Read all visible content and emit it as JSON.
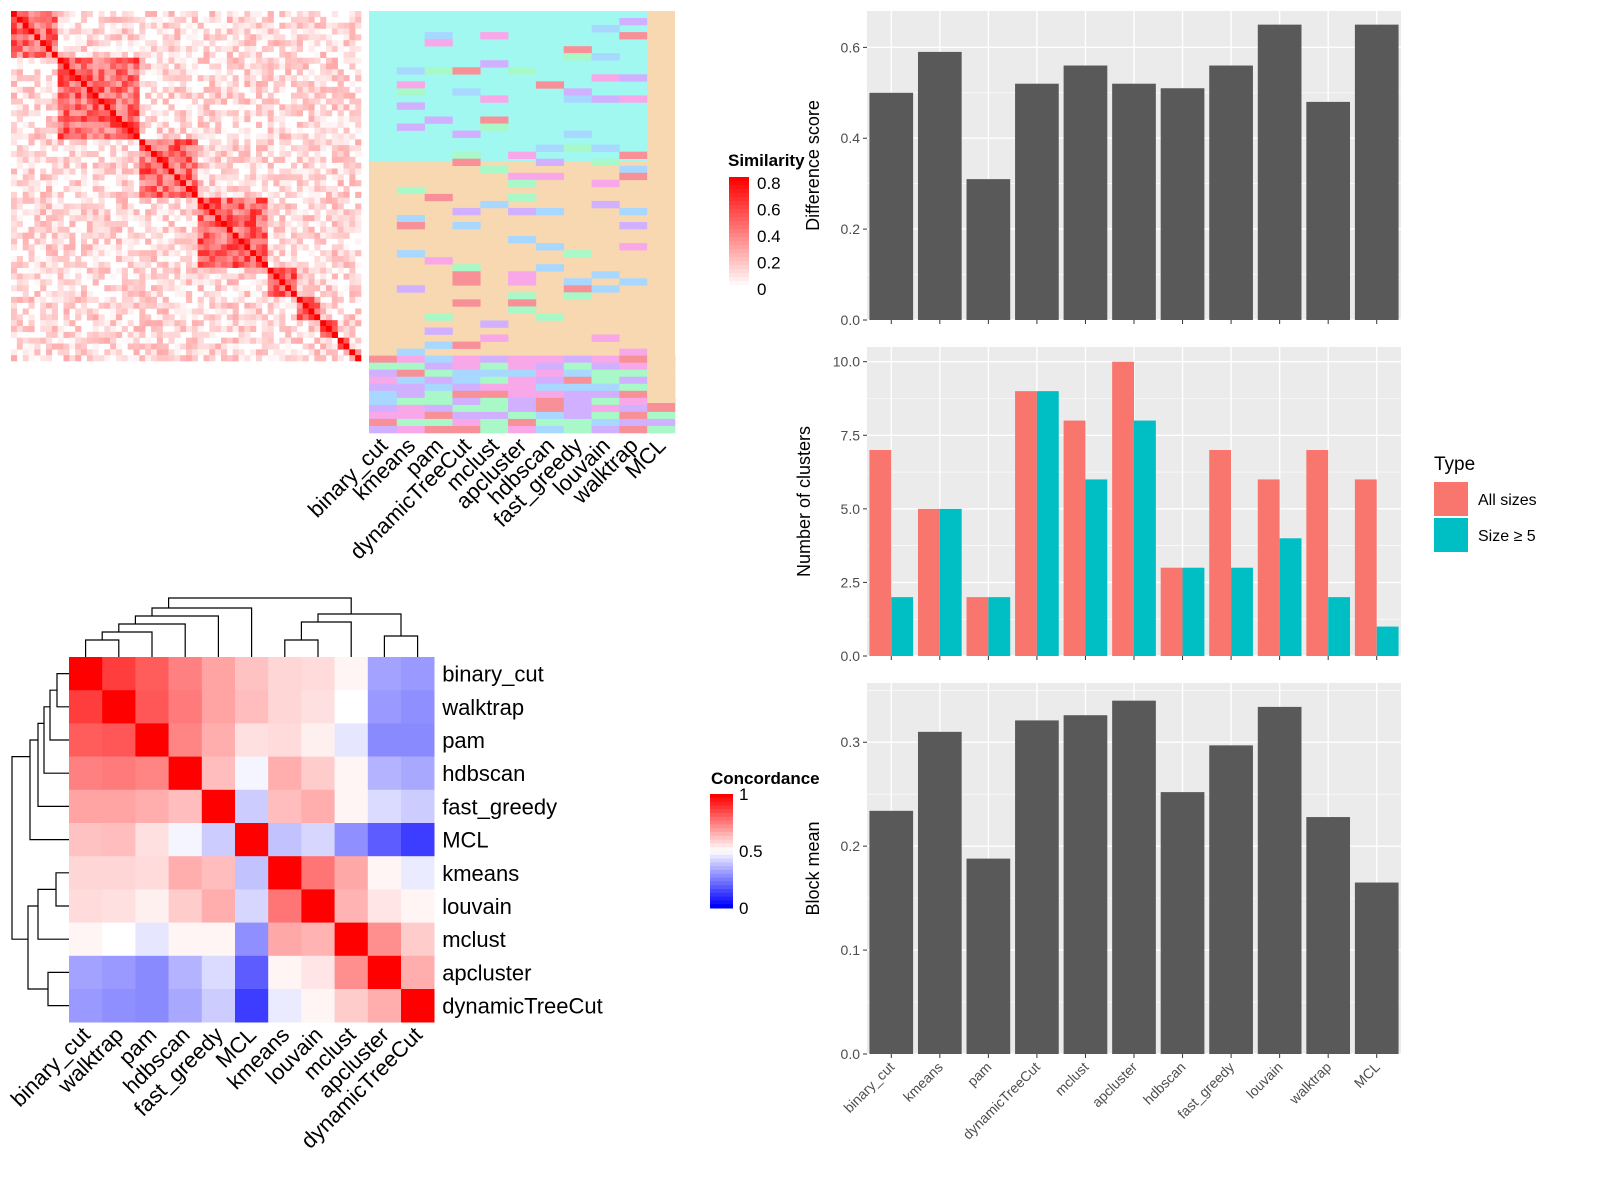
{
  "methods": [
    "binary_cut",
    "kmeans",
    "pam",
    "dynamicTreeCut",
    "mclust",
    "apcluster",
    "hdbscan",
    "fast_greedy",
    "louvain",
    "walktrap",
    "MCL"
  ],
  "chart_data": [
    {
      "id": "similarity_heatmap",
      "type": "heatmap",
      "legend_title": "Similarity",
      "legend_ticks": [
        "0",
        "0.2",
        "0.4",
        "0.6",
        "0.8"
      ],
      "legend_range": [
        0,
        0.8
      ],
      "color_low": "#ffffff",
      "color_high": "#ff0000",
      "matrix_size": 60,
      "block_sizes": [
        8,
        14,
        10,
        12,
        5,
        4,
        3,
        2,
        2
      ],
      "column_labels": [
        "binary_cut",
        "kmeans",
        "pam",
        "dynamicTreeCut",
        "mclust",
        "apcluster",
        "hdbscan",
        "fast_greedy",
        "louvain",
        "walktrap",
        "MCL"
      ],
      "cluster_palette": [
        "#a0f8f0",
        "#f8d8b0",
        "#a8d8ff",
        "#f89098",
        "#d0b0ff",
        "#a8f8c8",
        "#f8a8e8"
      ]
    },
    {
      "id": "concordance_heatmap",
      "type": "heatmap",
      "legend_title": "Concordance",
      "legend_ticks": [
        "1",
        "0.5",
        "0"
      ],
      "legend_range": [
        0,
        1
      ],
      "color_low": "#0000ff",
      "color_mid": "#ffffff",
      "color_high": "#ff0000",
      "labels": [
        "binary_cut",
        "walktrap",
        "pam",
        "hdbscan",
        "fast_greedy",
        "MCL",
        "kmeans",
        "louvain",
        "mclust",
        "apcluster",
        "dynamicTreeCut"
      ],
      "matrix": [
        [
          1.0,
          0.88,
          0.82,
          0.75,
          0.68,
          0.62,
          0.58,
          0.57,
          0.52,
          0.32,
          0.3
        ],
        [
          0.88,
          1.0,
          0.83,
          0.76,
          0.68,
          0.63,
          0.58,
          0.56,
          0.5,
          0.3,
          0.28
        ],
        [
          0.82,
          0.83,
          1.0,
          0.74,
          0.66,
          0.56,
          0.57,
          0.53,
          0.45,
          0.27,
          0.27
        ],
        [
          0.75,
          0.76,
          0.74,
          1.0,
          0.63,
          0.48,
          0.66,
          0.6,
          0.52,
          0.35,
          0.33
        ],
        [
          0.68,
          0.68,
          0.66,
          0.63,
          1.0,
          0.4,
          0.63,
          0.66,
          0.52,
          0.43,
          0.4
        ],
        [
          0.62,
          0.63,
          0.56,
          0.48,
          0.4,
          1.0,
          0.38,
          0.42,
          0.28,
          0.18,
          0.12
        ],
        [
          0.58,
          0.58,
          0.57,
          0.66,
          0.63,
          0.38,
          1.0,
          0.77,
          0.67,
          0.52,
          0.46
        ],
        [
          0.57,
          0.56,
          0.53,
          0.6,
          0.66,
          0.42,
          0.77,
          1.0,
          0.65,
          0.55,
          0.52
        ],
        [
          0.52,
          0.5,
          0.45,
          0.52,
          0.52,
          0.28,
          0.67,
          0.65,
          1.0,
          0.72,
          0.6
        ],
        [
          0.32,
          0.3,
          0.27,
          0.35,
          0.43,
          0.18,
          0.52,
          0.55,
          0.72,
          1.0,
          0.66
        ],
        [
          0.3,
          0.28,
          0.27,
          0.33,
          0.4,
          0.12,
          0.46,
          0.52,
          0.6,
          0.66,
          1.0
        ]
      ]
    },
    {
      "id": "difference_score",
      "type": "bar",
      "categories": [
        "binary_cut",
        "kmeans",
        "pam",
        "dynamicTreeCut",
        "mclust",
        "apcluster",
        "hdbscan",
        "fast_greedy",
        "louvain",
        "walktrap",
        "MCL"
      ],
      "values": [
        0.5,
        0.59,
        0.31,
        0.52,
        0.56,
        0.52,
        0.51,
        0.56,
        0.65,
        0.48,
        0.65
      ],
      "ylabel": "Difference score",
      "ylim": [
        0,
        0.68
      ],
      "yticks": [
        "0.0",
        "0.2",
        "0.4",
        "0.6"
      ],
      "ytick_values": [
        0,
        0.2,
        0.4,
        0.6
      ],
      "bar_color": "#595959",
      "panel_bg": "#ebebeb",
      "grid": true
    },
    {
      "id": "number_of_clusters",
      "type": "bar",
      "categories": [
        "binary_cut",
        "kmeans",
        "pam",
        "dynamicTreeCut",
        "mclust",
        "apcluster",
        "hdbscan",
        "fast_greedy",
        "louvain",
        "walktrap",
        "MCL"
      ],
      "series": [
        {
          "name": "All sizes",
          "color": "#f8766d",
          "values": [
            7,
            5,
            2,
            9,
            8,
            10,
            3,
            7,
            6,
            7,
            6
          ]
        },
        {
          "name": "Size ≥ 5",
          "color": "#00bfc4",
          "values": [
            2,
            5,
            2,
            9,
            6,
            8,
            3,
            3,
            4,
            2,
            1
          ]
        }
      ],
      "ylabel": "Number of clusters",
      "ylim": [
        0,
        10.5
      ],
      "yticks": [
        "0.0",
        "2.5",
        "5.0",
        "7.5",
        "10.0"
      ],
      "ytick_values": [
        0,
        2.5,
        5,
        7.5,
        10
      ],
      "legend_title": "Type",
      "legend_position": "right",
      "panel_bg": "#ebebeb",
      "grid": true
    },
    {
      "id": "block_mean",
      "type": "bar",
      "categories": [
        "binary_cut",
        "kmeans",
        "pam",
        "dynamicTreeCut",
        "mclust",
        "apcluster",
        "hdbscan",
        "fast_greedy",
        "louvain",
        "walktrap",
        "MCL"
      ],
      "values": [
        0.234,
        0.31,
        0.188,
        0.321,
        0.326,
        0.34,
        0.252,
        0.297,
        0.334,
        0.228,
        0.165
      ],
      "ylabel": "Block mean",
      "ylim": [
        0,
        0.357
      ],
      "yticks": [
        "0.0",
        "0.1",
        "0.2",
        "0.3"
      ],
      "ytick_values": [
        0,
        0.1,
        0.2,
        0.3
      ],
      "bar_color": "#595959",
      "panel_bg": "#ebebeb",
      "grid": true
    }
  ]
}
